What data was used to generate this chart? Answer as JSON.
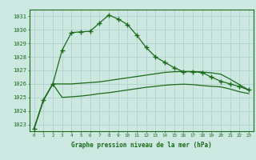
{
  "title": "Graphe pression niveau de la mer (hPa)",
  "x": [
    0,
    1,
    2,
    3,
    4,
    5,
    6,
    7,
    8,
    9,
    10,
    11,
    12,
    13,
    14,
    15,
    16,
    17,
    18,
    19,
    20,
    21,
    22,
    23
  ],
  "line1": [
    1022.7,
    1024.8,
    1026.0,
    1028.5,
    1029.8,
    1029.85,
    1029.9,
    1030.5,
    1031.1,
    1030.8,
    1030.4,
    1029.6,
    1028.7,
    1028.0,
    1027.6,
    1027.2,
    1026.9,
    1026.9,
    1026.85,
    1026.5,
    1026.2,
    1026.0,
    1025.8,
    1025.55
  ],
  "line2": [
    1022.7,
    1024.8,
    1026.0,
    1026.0,
    1026.0,
    1026.05,
    1026.1,
    1026.15,
    1026.25,
    1026.35,
    1026.45,
    1026.55,
    1026.65,
    1026.75,
    1026.85,
    1026.9,
    1026.92,
    1026.92,
    1026.88,
    1026.82,
    1026.72,
    1026.35,
    1025.95,
    1025.55
  ],
  "line3": [
    1022.7,
    1024.8,
    1026.0,
    1025.0,
    1025.05,
    1025.1,
    1025.18,
    1025.28,
    1025.35,
    1025.45,
    1025.55,
    1025.65,
    1025.75,
    1025.82,
    1025.9,
    1025.95,
    1025.98,
    1025.95,
    1025.88,
    1025.82,
    1025.78,
    1025.62,
    1025.42,
    1025.28
  ],
  "line_color": "#1a6b1a",
  "bg_color": "#cce8e0",
  "grid_color": "#aacec6",
  "ylim": [
    1022.5,
    1031.5
  ],
  "yticks": [
    1023,
    1024,
    1025,
    1026,
    1027,
    1028,
    1029,
    1030,
    1031
  ],
  "xticks": [
    0,
    1,
    2,
    3,
    4,
    5,
    6,
    7,
    8,
    9,
    10,
    11,
    12,
    13,
    14,
    15,
    16,
    17,
    18,
    19,
    20,
    21,
    22,
    23
  ],
  "title_color": "#1a6b1a",
  "marker": "+"
}
